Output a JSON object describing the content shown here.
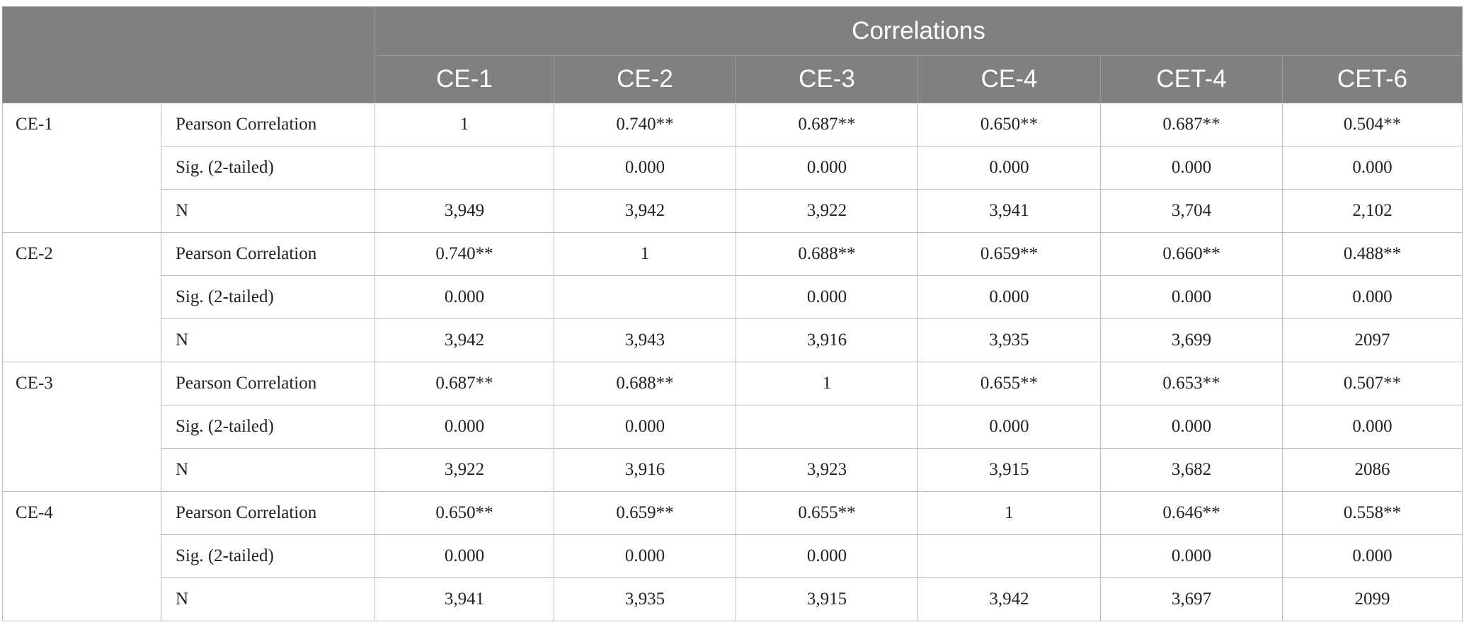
{
  "header": {
    "title": "Correlations",
    "columns": [
      "CE-1",
      "CE-2",
      "CE-3",
      "CE-4",
      "CET-4",
      "CET-6"
    ]
  },
  "table": {
    "rows": [
      {
        "label": "CE-1",
        "rows": [
          {
            "stat": "Pearson Correlation",
            "cells": [
              "1",
              "0.740**",
              "0.687**",
              "0.650**",
              "0.687**",
              "0.504**"
            ]
          },
          {
            "stat": "Sig. (2-tailed)",
            "cells": [
              null,
              "0.000",
              "0.000",
              "0.000",
              "0.000",
              "0.000"
            ]
          },
          {
            "stat": "N",
            "cells": [
              "3,949",
              "3,942",
              "3,922",
              "3,941",
              "3,704",
              "2,102"
            ]
          }
        ]
      },
      {
        "label": "CE-2",
        "rows": [
          {
            "stat": "Pearson Correlation",
            "cells": [
              "0.740**",
              "1",
              "0.688**",
              "0.659**",
              "0.660**",
              "0.488**"
            ]
          },
          {
            "stat": "Sig. (2-tailed)",
            "cells": [
              "0.000",
              null,
              "0.000",
              "0.000",
              "0.000",
              "0.000"
            ]
          },
          {
            "stat": "N",
            "cells": [
              "3,942",
              "3,943",
              "3,916",
              "3,935",
              "3,699",
              "2097"
            ]
          }
        ]
      },
      {
        "label": "CE-3",
        "rows": [
          {
            "stat": "Pearson Correlation",
            "cells": [
              "0.687**",
              "0.688**",
              "1",
              "0.655**",
              "0.653**",
              "0.507**"
            ]
          },
          {
            "stat": "Sig. (2-tailed)",
            "cells": [
              "0.000",
              "0.000",
              null,
              "0.000",
              "0.000",
              "0.000"
            ]
          },
          {
            "stat": "N",
            "cells": [
              "3,922",
              "3,916",
              "3,923",
              "3,915",
              "3,682",
              "2086"
            ]
          }
        ]
      },
      {
        "label": "CE-4",
        "rows": [
          {
            "stat": "Pearson Correlation",
            "cells": [
              "0.650**",
              "0.659**",
              "0.655**",
              "1",
              "0.646**",
              "0.558**"
            ]
          },
          {
            "stat": "Sig. (2-tailed)",
            "cells": [
              "0.000",
              "0.000",
              "0.000",
              null,
              "0.000",
              "0.000"
            ]
          },
          {
            "stat": "N",
            "cells": [
              "3,941",
              "3,935",
              "3,915",
              "3,942",
              "3,697",
              "2099"
            ]
          }
        ]
      }
    ]
  }
}
